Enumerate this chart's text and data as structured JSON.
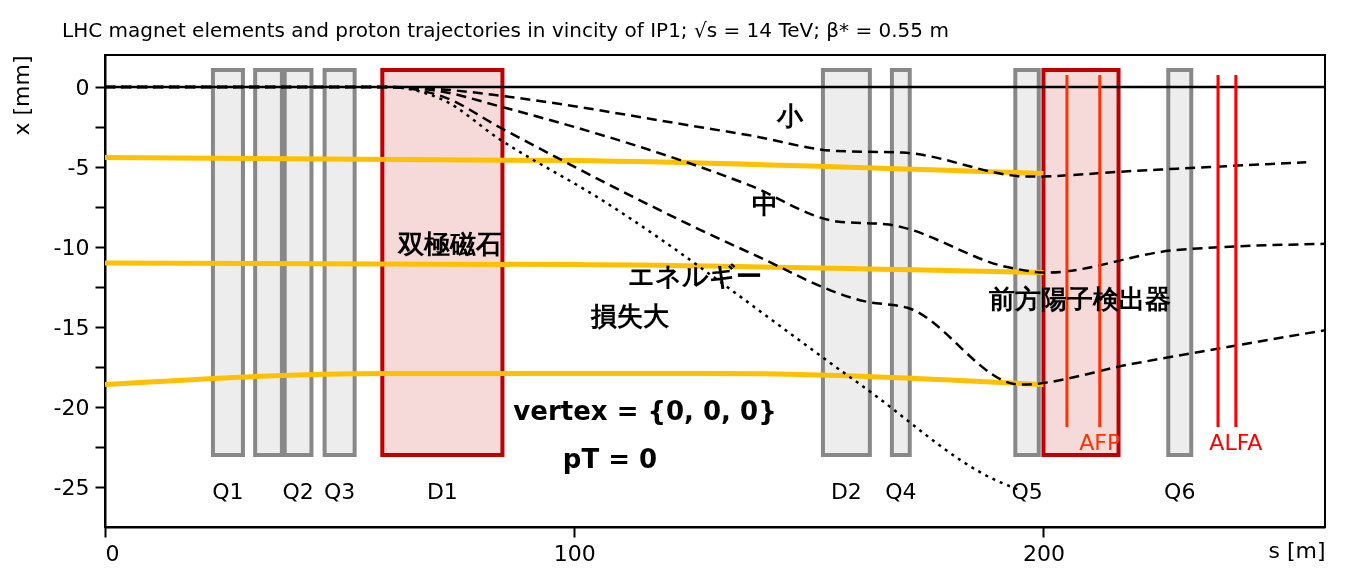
{
  "chart_data": {
    "type": "line",
    "title": "LHC magnet elements and proton trajectories in vincity of IP1;  √s = 14 TeV;  β* = 0.55 m",
    "xlabel": "s [m]",
    "ylabel": "x [mm]",
    "xlim": [
      0,
      260
    ],
    "ylim": [
      -27.5,
      2
    ],
    "xticks": [
      0,
      100,
      200
    ],
    "yticks": [
      0,
      {
        "value": -2.5,
        "label": null
      },
      -5,
      {
        "value": -7.5,
        "label": null
      },
      -10,
      {
        "value": -12.5,
        "label": null
      },
      -15,
      {
        "value": -17.5,
        "label": null
      },
      -20,
      {
        "value": -22.5,
        "label": null
      },
      -25
    ],
    "grid": false,
    "marker": "none",
    "series": [
      {
        "color": "#000000",
        "line_style": "solid",
        "x": [
          0,
          60,
          260
        ],
        "values": [
          0,
          0,
          0
        ]
      },
      {
        "color": "#000000",
        "line_style": "dashed",
        "x": [
          0,
          60,
          72,
          85.7,
          126.6,
          137,
          156,
          170,
          197,
          219,
          256
        ],
        "values": [
          0,
          0,
          -0.15,
          -0.6,
          -2.5,
          -3.0,
          -4.0,
          -4.1,
          -5.6,
          -5.25,
          -4.7
        ]
      },
      {
        "color": "#000000",
        "line_style": "dashed",
        "x": [
          0,
          60,
          72,
          84,
          137,
          156,
          167,
          193,
          200.6,
          228,
          260
        ],
        "values": [
          0,
          0,
          -0.3,
          -1.2,
          -6.1,
          -8.4,
          -8.6,
          -11.3,
          -11.6,
          -10.2,
          -9.8
        ]
      },
      {
        "color": "#000000",
        "line_style": "dashed",
        "x": [
          0,
          60,
          72,
          84,
          137,
          162,
          171,
          195,
          219,
          260
        ],
        "values": [
          0,
          0,
          -0.6,
          -2.5,
          -10.3,
          -13.4,
          -13.8,
          -18.6,
          -17.3,
          -15.2
        ]
      },
      {
        "color": "#000000",
        "line_style": "dotted",
        "x": [
          0,
          60,
          72,
          84,
          105,
          161,
          190,
          195
        ],
        "values": [
          0,
          0,
          -0.8,
          -3.25,
          -6.9,
          -18.6,
          -24.6,
          -25.2
        ]
      },
      {
        "color": "#ffc000",
        "line_style": "solid",
        "x": [
          0,
          100,
          200
        ],
        "values": [
          -4.4,
          -4.6,
          -5.4
        ]
      },
      {
        "color": "#ffc000",
        "line_style": "solid",
        "x": [
          0,
          100,
          200
        ],
        "values": [
          -11.0,
          -11.1,
          -11.6
        ]
      },
      {
        "color": "#ffc000",
        "line_style": "solid",
        "x": [
          0,
          60,
          130,
          200
        ],
        "values": [
          -18.6,
          -17.9,
          -17.9,
          -18.6
        ]
      }
    ],
    "bands": [
      {
        "axis": "x",
        "from": 23,
        "to": 29.4,
        "label": "Q1",
        "color": "#888888"
      },
      {
        "axis": "x",
        "from": 32,
        "to": 37.7,
        "label": null,
        "color": "#888888"
      },
      {
        "axis": "x",
        "from": 38.3,
        "to": 44,
        "label": "Q2",
        "color": "#888888"
      },
      {
        "axis": "x",
        "from": 46.8,
        "to": 53.2,
        "label": "Q3",
        "color": "#888888"
      },
      {
        "axis": "x",
        "from": 59.1,
        "to": 84.7,
        "label": "D1",
        "color": "#c00000"
      },
      {
        "axis": "x",
        "from": 153,
        "to": 163,
        "label": "D2",
        "color": "#888888"
      },
      {
        "axis": "x",
        "from": 167.7,
        "to": 171.5,
        "label": "Q4",
        "color": "#888888"
      },
      {
        "axis": "x",
        "from": 194,
        "to": 199,
        "label": "Q5",
        "color": "#888888"
      },
      {
        "axis": "x",
        "from": 200,
        "to": 216,
        "label": null,
        "color": "#c00000"
      },
      {
        "axis": "x",
        "from": 226.6,
        "to": 231.5,
        "label": "Q6",
        "color": "#888888"
      }
    ],
    "ref_lines": [
      {
        "axis": "x",
        "value": 205,
        "label": null,
        "color": "#ff3300"
      },
      {
        "axis": "x",
        "value": 212,
        "label": "AFP",
        "color": "#ff3300"
      },
      {
        "axis": "x",
        "value": 237.2,
        "label": null,
        "color": "#ff0000"
      },
      {
        "axis": "x",
        "value": 241,
        "label": "ALFA",
        "color": "#ff0000"
      }
    ],
    "annotations": [
      "小",
      "中",
      "エネルギー",
      "損失大",
      "双極磁石",
      "前方陽子検出器",
      "vertex = {0, 0, 0}",
      "pT = 0"
    ]
  }
}
